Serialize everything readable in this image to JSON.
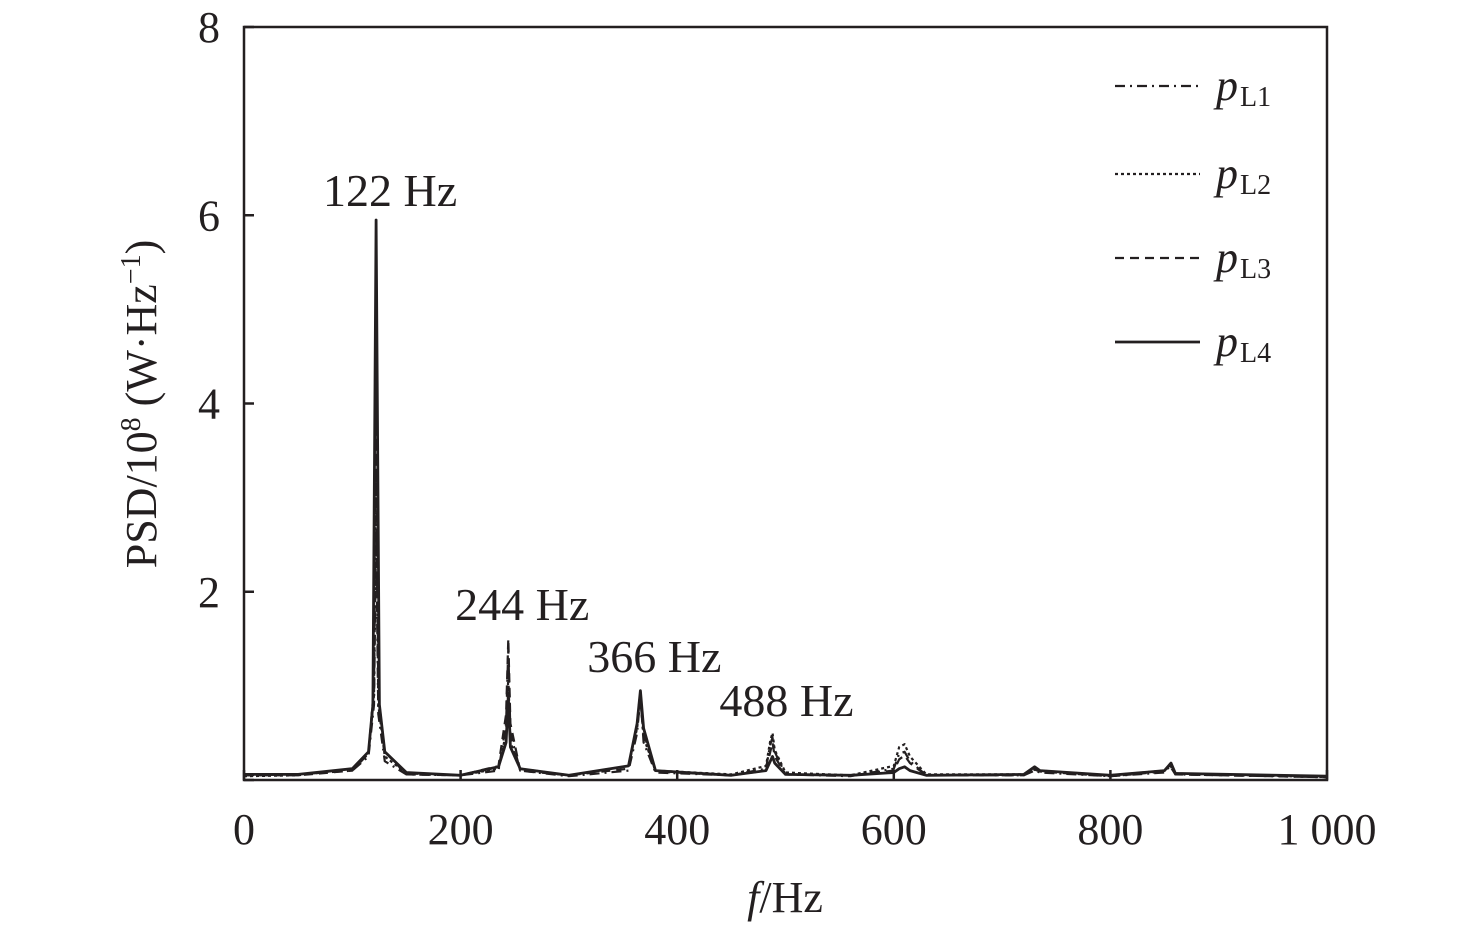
{
  "chart_data": {
    "type": "line",
    "title": "",
    "xlabel_italic": "f",
    "xlabel_rest": "/Hz",
    "ylabel_main": "PSD/10",
    "ylabel_exp": "8",
    "ylabel_unit_pre": " (W·Hz",
    "ylabel_unit_exp": "−1",
    "ylabel_unit_post": ")",
    "xlim": [
      0,
      1000
    ],
    "ylim": [
      0,
      8
    ],
    "xticks": [
      0,
      200,
      400,
      600,
      800,
      1000
    ],
    "xtick_labels": [
      "0",
      "200",
      "400",
      "600",
      "800",
      "1 000"
    ],
    "yticks": [
      0,
      2,
      4,
      6,
      8
    ],
    "ytick_labels": [
      "",
      "2",
      "4",
      "6",
      "8"
    ],
    "grid": false,
    "legend_position": "top-right",
    "series": [
      {
        "name": "pL1",
        "name_main": "p",
        "name_sub": "L1",
        "dash": "dashdot",
        "points": [
          [
            0,
            0.05
          ],
          [
            50,
            0.06
          ],
          [
            100,
            0.1
          ],
          [
            115,
            0.25
          ],
          [
            120,
            0.8
          ],
          [
            122,
            2.6
          ],
          [
            124,
            0.7
          ],
          [
            130,
            0.2
          ],
          [
            150,
            0.06
          ],
          [
            200,
            0.05
          ],
          [
            235,
            0.1
          ],
          [
            242,
            0.6
          ],
          [
            244,
            1.4
          ],
          [
            246,
            0.5
          ],
          [
            255,
            0.1
          ],
          [
            300,
            0.04
          ],
          [
            355,
            0.1
          ],
          [
            363,
            0.5
          ],
          [
            366,
            0.9
          ],
          [
            369,
            0.4
          ],
          [
            380,
            0.08
          ],
          [
            450,
            0.05
          ],
          [
            482,
            0.12
          ],
          [
            486,
            0.38
          ],
          [
            488,
            0.45
          ],
          [
            490,
            0.3
          ],
          [
            500,
            0.06
          ],
          [
            560,
            0.04
          ],
          [
            600,
            0.12
          ],
          [
            605,
            0.28
          ],
          [
            610,
            0.3
          ],
          [
            615,
            0.2
          ],
          [
            630,
            0.05
          ],
          [
            720,
            0.05
          ],
          [
            730,
            0.1
          ],
          [
            735,
            0.08
          ],
          [
            800,
            0.04
          ],
          [
            850,
            0.08
          ],
          [
            855,
            0.15
          ],
          [
            860,
            0.06
          ],
          [
            1000,
            0.03
          ]
        ]
      },
      {
        "name": "pL2",
        "name_main": "p",
        "name_sub": "L2",
        "dash": "dotted",
        "points": [
          [
            0,
            0.04
          ],
          [
            50,
            0.05
          ],
          [
            100,
            0.12
          ],
          [
            115,
            0.3
          ],
          [
            120,
            0.9
          ],
          [
            122,
            3.2
          ],
          [
            124,
            0.8
          ],
          [
            130,
            0.25
          ],
          [
            150,
            0.07
          ],
          [
            200,
            0.05
          ],
          [
            235,
            0.12
          ],
          [
            242,
            0.5
          ],
          [
            244,
            1.1
          ],
          [
            246,
            0.4
          ],
          [
            255,
            0.12
          ],
          [
            300,
            0.05
          ],
          [
            355,
            0.15
          ],
          [
            363,
            0.55
          ],
          [
            366,
            0.85
          ],
          [
            369,
            0.45
          ],
          [
            380,
            0.1
          ],
          [
            450,
            0.06
          ],
          [
            482,
            0.15
          ],
          [
            486,
            0.42
          ],
          [
            488,
            0.5
          ],
          [
            490,
            0.32
          ],
          [
            500,
            0.08
          ],
          [
            560,
            0.05
          ],
          [
            600,
            0.15
          ],
          [
            605,
            0.35
          ],
          [
            610,
            0.38
          ],
          [
            615,
            0.25
          ],
          [
            630,
            0.06
          ],
          [
            720,
            0.06
          ],
          [
            730,
            0.12
          ],
          [
            735,
            0.1
          ],
          [
            800,
            0.05
          ],
          [
            850,
            0.1
          ],
          [
            855,
            0.17
          ],
          [
            860,
            0.07
          ],
          [
            1000,
            0.03
          ]
        ]
      },
      {
        "name": "pL3",
        "name_main": "p",
        "name_sub": "L3",
        "dash": "dashed",
        "points": [
          [
            0,
            0.05
          ],
          [
            50,
            0.05
          ],
          [
            100,
            0.1
          ],
          [
            115,
            0.28
          ],
          [
            120,
            1.0
          ],
          [
            122,
            3.8
          ],
          [
            124,
            0.9
          ],
          [
            130,
            0.3
          ],
          [
            150,
            0.06
          ],
          [
            200,
            0.05
          ],
          [
            235,
            0.15
          ],
          [
            242,
            0.7
          ],
          [
            244,
            1.5
          ],
          [
            246,
            0.6
          ],
          [
            255,
            0.1
          ],
          [
            300,
            0.05
          ],
          [
            355,
            0.12
          ],
          [
            363,
            0.6
          ],
          [
            366,
            0.95
          ],
          [
            369,
            0.5
          ],
          [
            380,
            0.09
          ],
          [
            450,
            0.05
          ],
          [
            482,
            0.1
          ],
          [
            486,
            0.3
          ],
          [
            488,
            0.4
          ],
          [
            490,
            0.25
          ],
          [
            500,
            0.06
          ],
          [
            560,
            0.05
          ],
          [
            600,
            0.1
          ],
          [
            605,
            0.22
          ],
          [
            610,
            0.26
          ],
          [
            615,
            0.18
          ],
          [
            630,
            0.05
          ],
          [
            720,
            0.05
          ],
          [
            730,
            0.11
          ],
          [
            735,
            0.09
          ],
          [
            800,
            0.04
          ],
          [
            850,
            0.09
          ],
          [
            855,
            0.16
          ],
          [
            860,
            0.06
          ],
          [
            1000,
            0.03
          ]
        ]
      },
      {
        "name": "pL4",
        "name_main": "p",
        "name_sub": "L4",
        "dash": "solid",
        "points": [
          [
            0,
            0.06
          ],
          [
            50,
            0.06
          ],
          [
            100,
            0.12
          ],
          [
            115,
            0.3
          ],
          [
            119,
            0.8
          ],
          [
            122,
            5.95
          ],
          [
            125,
            0.8
          ],
          [
            130,
            0.3
          ],
          [
            150,
            0.08
          ],
          [
            200,
            0.05
          ],
          [
            235,
            0.14
          ],
          [
            242,
            0.4
          ],
          [
            244,
            0.9
          ],
          [
            246,
            0.35
          ],
          [
            255,
            0.12
          ],
          [
            300,
            0.05
          ],
          [
            355,
            0.15
          ],
          [
            363,
            0.6
          ],
          [
            366,
            0.95
          ],
          [
            369,
            0.55
          ],
          [
            380,
            0.1
          ],
          [
            450,
            0.05
          ],
          [
            482,
            0.1
          ],
          [
            486,
            0.2
          ],
          [
            488,
            0.25
          ],
          [
            490,
            0.18
          ],
          [
            500,
            0.06
          ],
          [
            560,
            0.05
          ],
          [
            600,
            0.08
          ],
          [
            605,
            0.12
          ],
          [
            610,
            0.14
          ],
          [
            615,
            0.1
          ],
          [
            630,
            0.05
          ],
          [
            720,
            0.06
          ],
          [
            730,
            0.14
          ],
          [
            735,
            0.1
          ],
          [
            800,
            0.05
          ],
          [
            850,
            0.1
          ],
          [
            856,
            0.18
          ],
          [
            860,
            0.07
          ],
          [
            1000,
            0.04
          ]
        ]
      }
    ],
    "annotations": [
      {
        "text": "122 Hz",
        "x": 122,
        "y": 6.1
      },
      {
        "text": "244 Hz",
        "x": 244,
        "y": 1.7
      },
      {
        "text": "366 Hz",
        "x": 366,
        "y": 1.15
      },
      {
        "text": "488 Hz",
        "x": 488,
        "y": 0.68
      }
    ]
  }
}
